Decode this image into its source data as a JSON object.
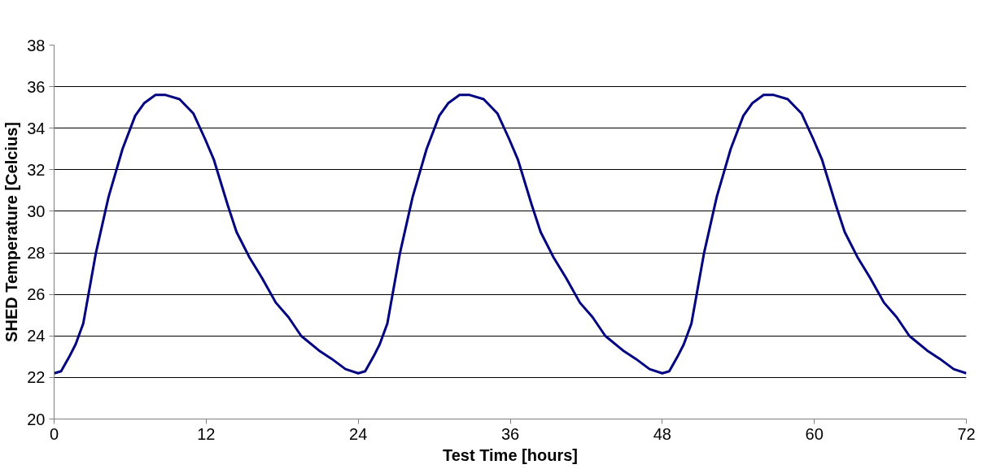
{
  "chart_data": {
    "type": "line",
    "xlabel": "Test Time [hours]",
    "ylabel": "SHED Temperature [Celcius]",
    "xlim": [
      0,
      72
    ],
    "xticks": [
      0,
      12,
      24,
      36,
      48,
      60,
      72
    ],
    "ylim": [
      20,
      38
    ],
    "yticks": [
      20,
      22,
      24,
      26,
      28,
      30,
      32,
      34,
      36,
      38
    ],
    "grid": "y",
    "marker": "none",
    "line_style": "solid",
    "series": [
      {
        "color": "#000080",
        "x": [
          0,
          0.55,
          1.2,
          1.7,
          2.3,
          3.3,
          4.3,
          5.4,
          6.4,
          7.1,
          8,
          8.8,
          9.9,
          11,
          11.9,
          12.6,
          13.7,
          14.4,
          15.4,
          16.4,
          17.5,
          18.5,
          19.5,
          20.9,
          21.9,
          23,
          24,
          24.55,
          25.2,
          25.7,
          26.3,
          27.3,
          28.3,
          29.4,
          30.4,
          31.1,
          32,
          32.8,
          33.9,
          35,
          35.9,
          36.6,
          37.7,
          38.4,
          39.4,
          40.4,
          41.5,
          42.5,
          43.5,
          44.9,
          45.9,
          47,
          48,
          48.55,
          49.2,
          49.7,
          50.3,
          51.3,
          52.3,
          53.4,
          54.4,
          55.1,
          56,
          56.8,
          57.9,
          59,
          59.9,
          60.6,
          61.7,
          62.4,
          63.4,
          64.4,
          65.5,
          66.5,
          67.5,
          68.9,
          69.9,
          71,
          72
        ],
        "values": [
          22.2,
          22.3,
          23.0,
          23.6,
          24.6,
          28.0,
          30.7,
          33.0,
          34.6,
          35.2,
          35.6,
          35.6,
          35.4,
          34.7,
          33.5,
          32.5,
          30.3,
          29.0,
          27.8,
          26.8,
          25.6,
          24.9,
          24.0,
          23.3,
          22.9,
          22.4,
          22.2,
          22.3,
          23.0,
          23.6,
          24.6,
          28.0,
          30.7,
          33.0,
          34.6,
          35.2,
          35.6,
          35.6,
          35.4,
          34.7,
          33.5,
          32.5,
          30.3,
          29.0,
          27.8,
          26.8,
          25.6,
          24.9,
          24.0,
          23.3,
          22.9,
          22.4,
          22.2,
          22.3,
          23.0,
          23.6,
          24.6,
          28.0,
          30.7,
          33.0,
          34.6,
          35.2,
          35.6,
          35.6,
          35.4,
          34.7,
          33.5,
          32.5,
          30.3,
          29.0,
          27.8,
          26.8,
          25.6,
          24.9,
          24.0,
          23.3,
          22.9,
          22.4,
          22.2
        ]
      }
    ]
  }
}
